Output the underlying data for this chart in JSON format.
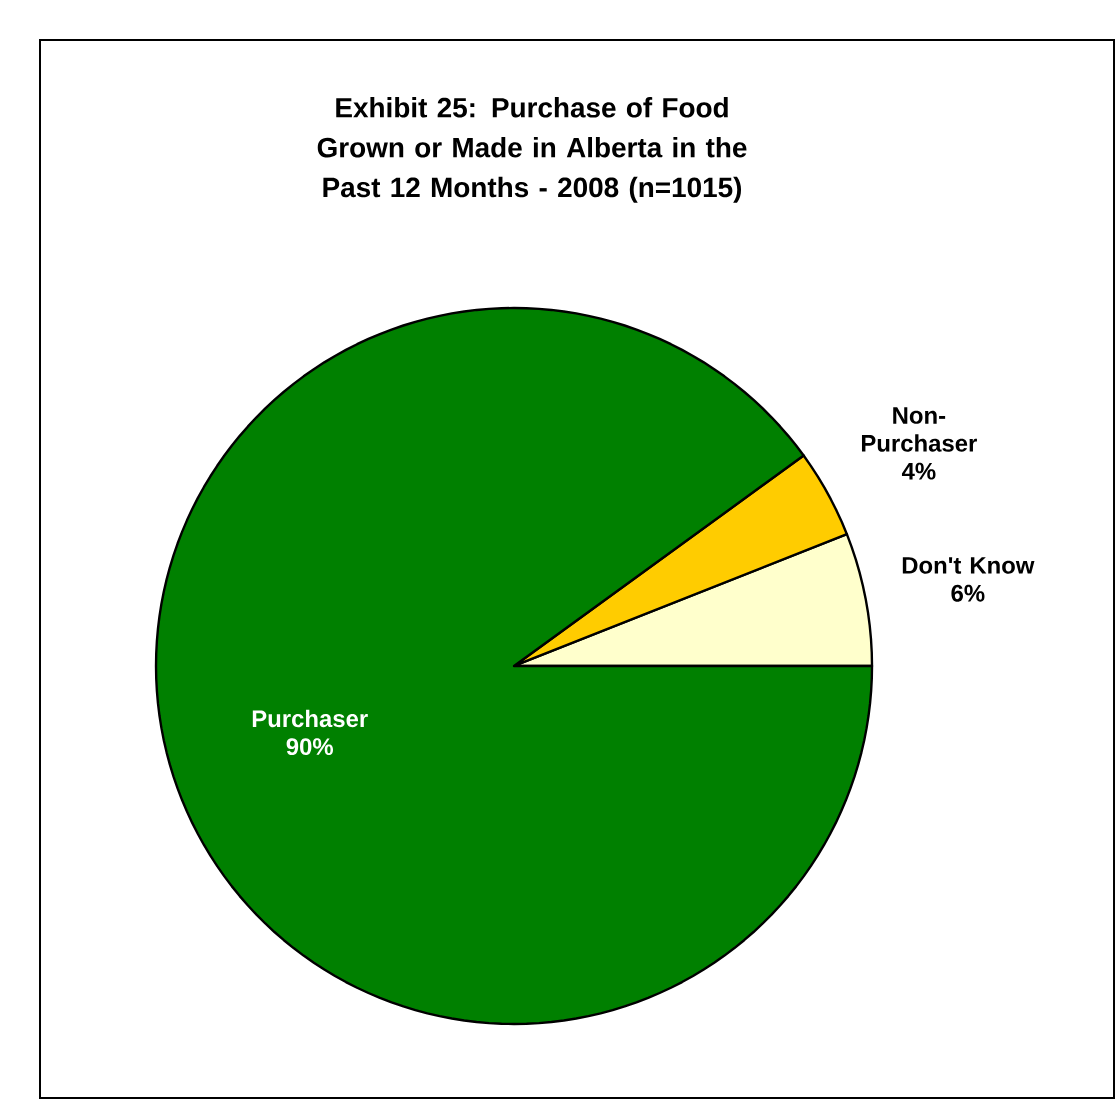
{
  "chart_data": {
    "type": "pie",
    "title": "Exhibit 25: Purchase of Food Grown or Made in Alberta in the Past 12 Months - 2008 (n=1015)",
    "categories": [
      "Don't Know",
      "Non-Purchaser",
      "Purchaser"
    ],
    "values": [
      6,
      4,
      90
    ],
    "value_labels": [
      "6%",
      "4%",
      "90%"
    ],
    "colors": [
      "#ffffcc",
      "#ffcc00",
      "#008000"
    ]
  }
}
